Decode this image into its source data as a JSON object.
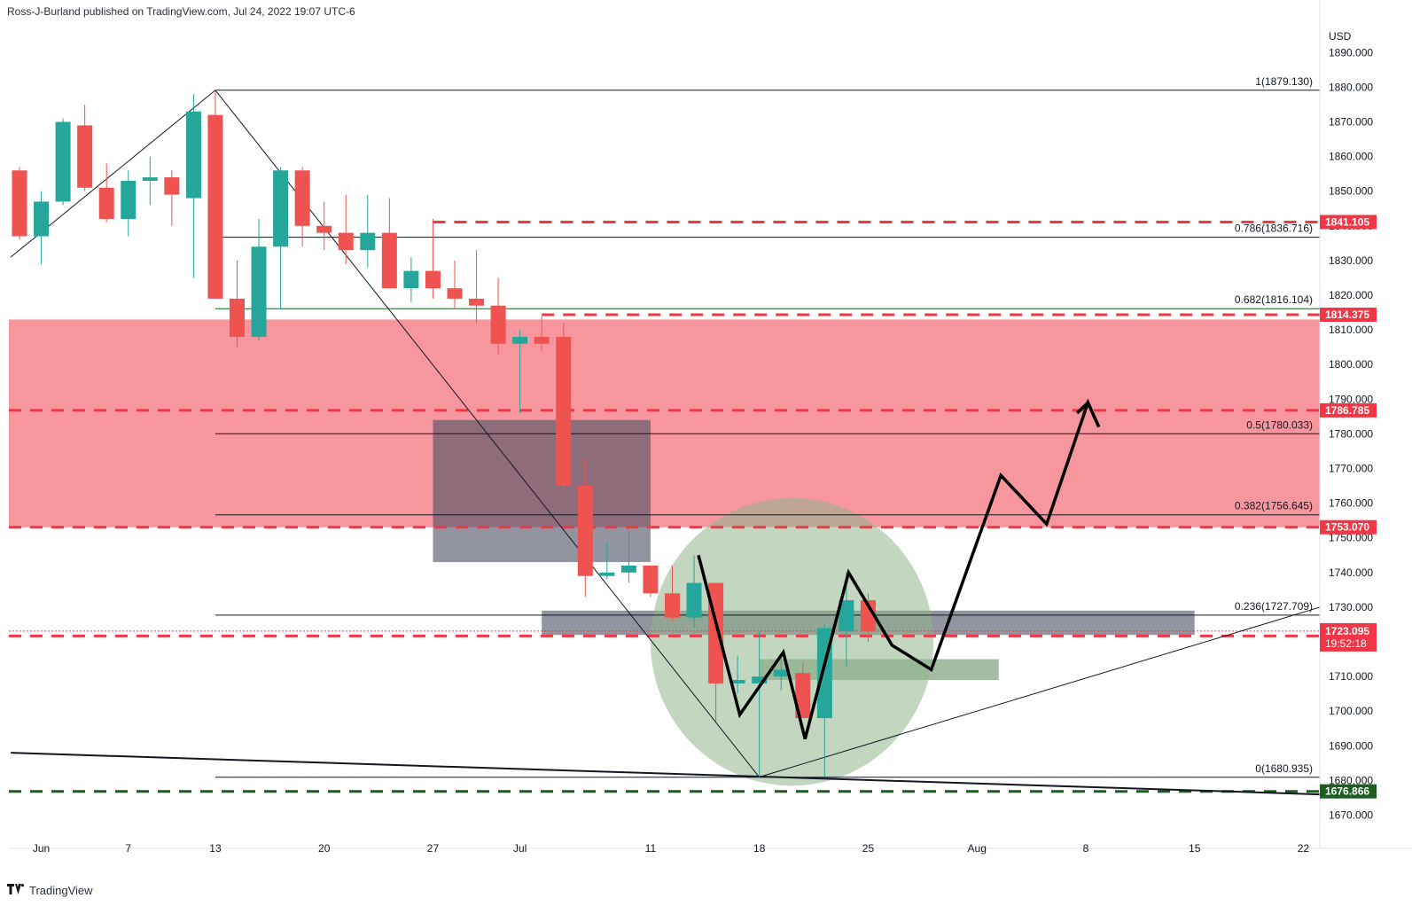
{
  "header": {
    "text": "Ross-J-Burland published on TradingView.com, Jul 24, 2022 19:07 UTC-6"
  },
  "footer": {
    "brand": "TradingView",
    "logo_icon": "tradingview-logo-icon"
  },
  "chart_data": {
    "type": "candlestick",
    "currency": "USD",
    "ylim": [
      1664,
      1898
    ],
    "y_ticks": [
      1670,
      1680,
      1690,
      1700,
      1710,
      1720,
      1730,
      1740,
      1750,
      1760,
      1770,
      1780,
      1790,
      1800,
      1810,
      1820,
      1830,
      1840,
      1850,
      1860,
      1870,
      1880,
      1890
    ],
    "x_ticks": [
      {
        "label": "Jun",
        "x": 1.0
      },
      {
        "label": "7",
        "x": 5.0
      },
      {
        "label": "13",
        "x": 9.0
      },
      {
        "label": "20",
        "x": 14.0
      },
      {
        "label": "27",
        "x": 19.0
      },
      {
        "label": "Jul",
        "x": 23.0
      },
      {
        "label": "11",
        "x": 29.0
      },
      {
        "label": "18",
        "x": 34.0
      },
      {
        "label": "25",
        "x": 39.0
      },
      {
        "label": "Aug",
        "x": 44.0
      },
      {
        "label": "8",
        "x": 49.0
      },
      {
        "label": "15",
        "x": 54.0
      },
      {
        "label": "22",
        "x": 59.0
      }
    ],
    "colors": {
      "up": "#26a69a",
      "down": "#ef5350",
      "zone": "#f23645",
      "fib": "#131722",
      "green_line": "#1b5e20"
    },
    "candles": [
      {
        "x": 0,
        "o": 1856,
        "h": 1857,
        "l": 1836,
        "c": 1837
      },
      {
        "x": 1,
        "o": 1837,
        "h": 1850,
        "l": 1829,
        "c": 1847
      },
      {
        "x": 2,
        "o": 1847,
        "h": 1871,
        "l": 1846,
        "c": 1870
      },
      {
        "x": 3,
        "o": 1869,
        "h": 1875,
        "l": 1850,
        "c": 1851
      },
      {
        "x": 4,
        "o": 1851,
        "h": 1858,
        "l": 1841,
        "c": 1842
      },
      {
        "x": 5,
        "o": 1842,
        "h": 1856,
        "l": 1837,
        "c": 1853
      },
      {
        "x": 6,
        "o": 1853,
        "h": 1860,
        "l": 1846,
        "c": 1854
      },
      {
        "x": 7,
        "o": 1854,
        "h": 1856,
        "l": 1840,
        "c": 1849
      },
      {
        "x": 8,
        "o": 1848,
        "h": 1878,
        "l": 1825,
        "c": 1873
      },
      {
        "x": 9,
        "o": 1872,
        "h": 1879,
        "l": 1819,
        "c": 1819
      },
      {
        "x": 10,
        "o": 1819,
        "h": 1830,
        "l": 1805,
        "c": 1808
      },
      {
        "x": 11,
        "o": 1808,
        "h": 1842,
        "l": 1807,
        "c": 1834
      },
      {
        "x": 12,
        "o": 1834,
        "h": 1857,
        "l": 1816,
        "c": 1856
      },
      {
        "x": 13,
        "o": 1856,
        "h": 1857,
        "l": 1834,
        "c": 1840
      },
      {
        "x": 14,
        "o": 1840,
        "h": 1847,
        "l": 1833,
        "c": 1838
      },
      {
        "x": 15,
        "o": 1838,
        "h": 1849,
        "l": 1829,
        "c": 1833
      },
      {
        "x": 16,
        "o": 1833,
        "h": 1849,
        "l": 1828,
        "c": 1838
      },
      {
        "x": 17,
        "o": 1838,
        "h": 1848,
        "l": 1822,
        "c": 1822
      },
      {
        "x": 18,
        "o": 1822,
        "h": 1831,
        "l": 1818,
        "c": 1827
      },
      {
        "x": 19,
        "o": 1827,
        "h": 1842,
        "l": 1819,
        "c": 1822
      },
      {
        "x": 20,
        "o": 1822,
        "h": 1830,
        "l": 1816,
        "c": 1819
      },
      {
        "x": 21,
        "o": 1819,
        "h": 1833,
        "l": 1812,
        "c": 1817
      },
      {
        "x": 22,
        "o": 1817,
        "h": 1825,
        "l": 1803,
        "c": 1806
      },
      {
        "x": 23,
        "o": 1806,
        "h": 1810,
        "l": 1786,
        "c": 1808
      },
      {
        "x": 24,
        "o": 1808,
        "h": 1814,
        "l": 1804,
        "c": 1806
      },
      {
        "x": 25,
        "o": 1808,
        "h": 1812,
        "l": 1764,
        "c": 1765
      },
      {
        "x": 26,
        "o": 1765,
        "h": 1773,
        "l": 1733,
        "c": 1739
      },
      {
        "x": 27,
        "o": 1739,
        "h": 1749,
        "l": 1738,
        "c": 1740
      },
      {
        "x": 28,
        "o": 1740,
        "h": 1752,
        "l": 1737,
        "c": 1742
      },
      {
        "x": 29,
        "o": 1742,
        "h": 1742,
        "l": 1733,
        "c": 1734
      },
      {
        "x": 30,
        "o": 1734,
        "h": 1742,
        "l": 1726,
        "c": 1727
      },
      {
        "x": 31,
        "o": 1727,
        "h": 1745,
        "l": 1724,
        "c": 1737
      },
      {
        "x": 32,
        "o": 1737,
        "h": 1737,
        "l": 1697,
        "c": 1708
      },
      {
        "x": 33,
        "o": 1708,
        "h": 1716,
        "l": 1705,
        "c": 1709
      },
      {
        "x": 34,
        "o": 1708,
        "h": 1723,
        "l": 1681,
        "c": 1710
      },
      {
        "x": 35,
        "o": 1710,
        "h": 1716,
        "l": 1706,
        "c": 1712
      },
      {
        "x": 36,
        "o": 1711,
        "h": 1714,
        "l": 1698,
        "c": 1698
      },
      {
        "x": 37,
        "o": 1698,
        "h": 1725,
        "l": 1681,
        "c": 1724
      },
      {
        "x": 38,
        "o": 1723,
        "h": 1740,
        "l": 1713,
        "c": 1732
      },
      {
        "x": 39,
        "o": 1732,
        "h": 1734,
        "l": 1720,
        "c": 1723
      }
    ],
    "fib_levels": [
      {
        "label": "1(1879.130)",
        "value": 1879.13
      },
      {
        "label": "0.786(1836.716)",
        "value": 1836.716
      },
      {
        "label": "0.682(1816.104)",
        "value": 1816.104,
        "color": "#1b5e20"
      },
      {
        "label": "0.5(1780.033)",
        "value": 1780.033
      },
      {
        "label": "0.382(1756.645)",
        "value": 1756.645
      },
      {
        "label": "0.236(1727.709)",
        "value": 1727.709
      },
      {
        "label": "0(1680.935)",
        "value": 1680.935
      }
    ],
    "price_badges": [
      {
        "label": "1841.105",
        "value": 1841.105,
        "color": "#f23645"
      },
      {
        "label": "1814.375",
        "value": 1814.375,
        "color": "#f23645"
      },
      {
        "label": "1786.785",
        "value": 1786.785,
        "color": "#f23645"
      },
      {
        "label": "1753.070",
        "value": 1753.07,
        "color": "#f23645"
      },
      {
        "label": "1721.710",
        "value": 1721.71,
        "color": "#f23645"
      },
      {
        "label": "1676.866",
        "value": 1676.866,
        "color": "#1b5e20"
      }
    ],
    "last_price": {
      "label": "1723.095",
      "countdown": "19:52:18",
      "value": 1723.095,
      "color": "#f23645"
    },
    "dashed_levels": [
      {
        "value": 1841.105,
        "x0": 19,
        "color": "#f23645"
      },
      {
        "value": 1814.375,
        "x0": 24,
        "color": "#f23645"
      },
      {
        "value": 1786.785,
        "x0": -1,
        "color": "#f23645"
      },
      {
        "value": 1753.07,
        "x0": -1,
        "color": "#f23645"
      },
      {
        "value": 1721.71,
        "x0": -1,
        "color": "#f23645"
      },
      {
        "value": 1676.866,
        "x0": -1,
        "color": "#1b5e20"
      }
    ],
    "zones": [
      {
        "name": "resistance-zone",
        "x0": -1,
        "x1": 60.3,
        "y0": 1753.07,
        "y1": 1813,
        "color": "#f23645",
        "opacity": 0.52
      },
      {
        "name": "gray-box",
        "x0": 19,
        "x1": 29,
        "y0": 1743,
        "y1": 1784,
        "color": "#4f5364",
        "opacity": 0.62
      },
      {
        "name": "gray-band",
        "x0": 24,
        "x1": 54,
        "y0": 1722,
        "y1": 1729,
        "color": "#4f5364",
        "opacity": 0.62
      },
      {
        "name": "green-band",
        "x0": 34,
        "x1": 45,
        "y0": 1709,
        "y1": 1715,
        "color": "#7d9f7d",
        "opacity": 0.7
      }
    ],
    "circle": {
      "cx": 35.5,
      "cy": 1720,
      "rx": 6.5,
      "ry": 41.5,
      "color": "#8fb48c",
      "opacity": 0.55
    },
    "trendlines": [
      {
        "points": [
          [
            -0.4,
            1831
          ],
          [
            9,
            1879.13
          ]
        ],
        "width": 1
      },
      {
        "points": [
          [
            9,
            1879.13
          ],
          [
            34,
            1680.935
          ]
        ],
        "width": 1
      },
      {
        "points": [
          [
            34,
            1681
          ],
          [
            60.3,
            1730
          ]
        ],
        "width": 1
      },
      {
        "points": [
          [
            -0.4,
            1688
          ],
          [
            60.3,
            1676
          ]
        ],
        "width": 2
      }
    ],
    "projection_path": [
      [
        31.2,
        1745
      ],
      [
        33.1,
        1699
      ],
      [
        35.1,
        1717
      ],
      [
        36.1,
        1692
      ],
      [
        38.1,
        1740
      ],
      [
        40.1,
        1719
      ],
      [
        41.9,
        1712
      ],
      [
        45.1,
        1768
      ],
      [
        47.2,
        1754
      ],
      [
        49.1,
        1789
      ],
      [
        49.6,
        1782
      ]
    ],
    "projection_arrow": [
      [
        48.6,
        1786
      ],
      [
        49.1,
        1789
      ],
      [
        49.6,
        1782
      ]
    ]
  }
}
